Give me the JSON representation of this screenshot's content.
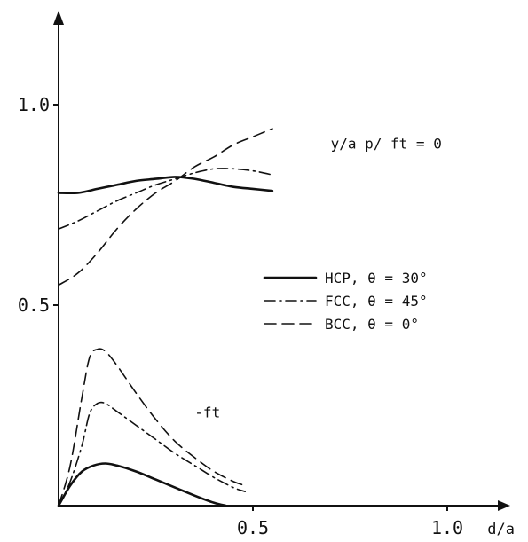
{
  "chart_data": {
    "type": "line",
    "title": "",
    "xlabel": "d/a",
    "ylabel": "",
    "xlim": [
      0,
      1.2
    ],
    "ylim": [
      0,
      1.15
    ],
    "grid": false,
    "x_ticks": [
      {
        "value": 0.5,
        "label": "0.5"
      },
      {
        "value": 1.0,
        "label": "1.0"
      }
    ],
    "y_ticks": [
      {
        "value": 0.5,
        "label": "0.5"
      },
      {
        "value": 1.0,
        "label": "1.0"
      }
    ],
    "legend": {
      "placement": "center-right",
      "entries": [
        {
          "label": "HCP, θ = 30°",
          "style": "solid"
        },
        {
          "label": "FCC, θ = 45°",
          "style": "dashdot"
        },
        {
          "label": "BCC, θ = 0°",
          "style": "dashed"
        }
      ]
    },
    "annotations": [
      {
        "text": "y/a  p/ ft = 0",
        "x": 0.7,
        "y": 0.89
      },
      {
        "text": "-ft",
        "x": 0.35,
        "y": 0.22
      }
    ],
    "series": [
      {
        "group": "y/a",
        "style": "solid",
        "x": [
          0,
          0.05,
          0.1,
          0.15,
          0.2,
          0.25,
          0.3,
          0.35,
          0.4,
          0.45,
          0.5,
          0.55
        ],
        "y": [
          0.78,
          0.78,
          0.79,
          0.8,
          0.81,
          0.815,
          0.82,
          0.815,
          0.805,
          0.795,
          0.79,
          0.785
        ]
      },
      {
        "group": "y/a",
        "style": "dashdot",
        "x": [
          0,
          0.05,
          0.1,
          0.15,
          0.2,
          0.25,
          0.3,
          0.35,
          0.4,
          0.45,
          0.5,
          0.55
        ],
        "y": [
          0.69,
          0.71,
          0.735,
          0.76,
          0.78,
          0.8,
          0.815,
          0.83,
          0.84,
          0.84,
          0.835,
          0.825
        ]
      },
      {
        "group": "y/a",
        "style": "dashed",
        "x": [
          0,
          0.05,
          0.1,
          0.15,
          0.2,
          0.25,
          0.3,
          0.35,
          0.4,
          0.45,
          0.5,
          0.55
        ],
        "y": [
          0.55,
          0.58,
          0.63,
          0.69,
          0.74,
          0.78,
          0.81,
          0.845,
          0.87,
          0.9,
          0.92,
          0.94
        ]
      },
      {
        "group": "-ft",
        "style": "solid",
        "x": [
          0,
          0.03,
          0.06,
          0.09,
          0.12,
          0.15,
          0.2,
          0.25,
          0.3,
          0.35,
          0.4,
          0.43
        ],
        "y": [
          0.0,
          0.05,
          0.085,
          0.1,
          0.105,
          0.1,
          0.085,
          0.065,
          0.045,
          0.025,
          0.007,
          0.0
        ]
      },
      {
        "group": "-ft",
        "style": "dashdot",
        "x": [
          0,
          0.03,
          0.06,
          0.08,
          0.1,
          0.12,
          0.15,
          0.2,
          0.25,
          0.3,
          0.35,
          0.4,
          0.45,
          0.48
        ],
        "y": [
          0.0,
          0.06,
          0.15,
          0.23,
          0.255,
          0.255,
          0.235,
          0.2,
          0.165,
          0.13,
          0.1,
          0.07,
          0.045,
          0.035
        ]
      },
      {
        "group": "-ft",
        "style": "dashed",
        "x": [
          0,
          0.03,
          0.06,
          0.08,
          0.1,
          0.12,
          0.15,
          0.2,
          0.25,
          0.3,
          0.35,
          0.4,
          0.45,
          0.48
        ],
        "y": [
          0.0,
          0.1,
          0.27,
          0.37,
          0.39,
          0.385,
          0.35,
          0.28,
          0.215,
          0.16,
          0.12,
          0.085,
          0.06,
          0.05
        ]
      }
    ]
  }
}
